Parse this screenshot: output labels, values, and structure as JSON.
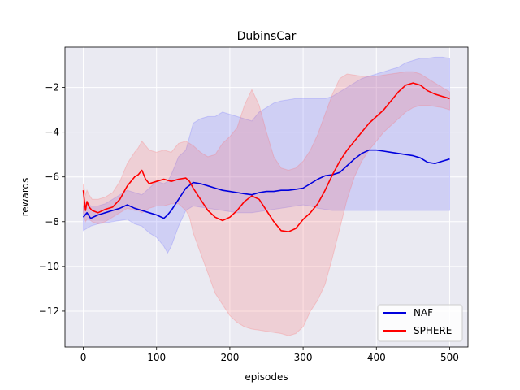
{
  "chart_data": {
    "type": "line",
    "title": "DubinsCar",
    "xlabel": "episodes",
    "ylabel": "rewards",
    "xlim": [
      -25,
      525
    ],
    "ylim": [
      -13.6,
      -0.2
    ],
    "xticks": [
      0,
      100,
      200,
      300,
      400,
      500
    ],
    "yticks": [
      -12,
      -10,
      -8,
      -6,
      -4,
      -2
    ],
    "xtick_labels": [
      "0",
      "100",
      "200",
      "300",
      "400",
      "500"
    ],
    "ytick_labels": [
      "−12",
      "−10",
      "−8",
      "−6",
      "−4",
      "−2"
    ],
    "grid": true,
    "legend_position": "bottom-right",
    "colors": {
      "background": "#eaeaf2",
      "grid": "#ffffff",
      "naf": "#0000dd",
      "sphere": "#ff0000",
      "naf_band": "#6666ff",
      "sphere_band": "#ff6666"
    },
    "series": [
      {
        "name": "NAF",
        "color": "#0000dd",
        "x": [
          0,
          5,
          10,
          20,
          30,
          40,
          50,
          60,
          70,
          80,
          90,
          100,
          110,
          115,
          120,
          130,
          140,
          150,
          160,
          170,
          180,
          190,
          200,
          210,
          220,
          230,
          240,
          250,
          260,
          270,
          280,
          290,
          300,
          310,
          320,
          330,
          340,
          350,
          360,
          370,
          380,
          390,
          400,
          410,
          420,
          430,
          440,
          450,
          460,
          470,
          480,
          490,
          500
        ],
        "y": [
          -7.8,
          -7.6,
          -7.85,
          -7.7,
          -7.6,
          -7.5,
          -7.4,
          -7.25,
          -7.4,
          -7.5,
          -7.6,
          -7.7,
          -7.85,
          -7.7,
          -7.5,
          -7.0,
          -6.5,
          -6.25,
          -6.3,
          -6.4,
          -6.5,
          -6.6,
          -6.65,
          -6.7,
          -6.75,
          -6.8,
          -6.7,
          -6.65,
          -6.65,
          -6.6,
          -6.6,
          -6.55,
          -6.5,
          -6.3,
          -6.1,
          -5.95,
          -5.9,
          -5.8,
          -5.5,
          -5.2,
          -4.95,
          -4.8,
          -4.8,
          -4.85,
          -4.9,
          -4.95,
          -5.0,
          -5.05,
          -5.15,
          -5.35,
          -5.4,
          -5.3,
          -5.2
        ],
        "lower": [
          -8.4,
          -8.3,
          -8.2,
          -8.1,
          -8.05,
          -8.0,
          -7.95,
          -7.9,
          -8.1,
          -8.2,
          -8.5,
          -8.7,
          -9.1,
          -9.4,
          -9.1,
          -8.2,
          -7.5,
          -7.3,
          -7.35,
          -7.4,
          -7.45,
          -7.5,
          -7.55,
          -7.6,
          -7.6,
          -7.6,
          -7.55,
          -7.5,
          -7.45,
          -7.4,
          -7.35,
          -7.3,
          -7.25,
          -7.3,
          -7.4,
          -7.45,
          -7.5,
          -7.5,
          -7.5,
          -7.5,
          -7.5,
          -7.5,
          -7.5,
          -7.5,
          -7.5,
          -7.5,
          -7.5,
          -7.5,
          -7.5,
          -7.5,
          -7.5,
          -7.5,
          -7.5
        ],
        "upper": [
          -7.3,
          -7.1,
          -7.3,
          -7.3,
          -7.2,
          -7.0,
          -6.8,
          -6.6,
          -6.7,
          -6.8,
          -6.5,
          -6.2,
          -6.3,
          -6.2,
          -5.9,
          -5.1,
          -4.8,
          -3.6,
          -3.4,
          -3.3,
          -3.3,
          -3.1,
          -3.2,
          -3.3,
          -3.4,
          -3.5,
          -3.1,
          -2.9,
          -2.7,
          -2.6,
          -2.55,
          -2.5,
          -2.5,
          -2.5,
          -2.5,
          -2.5,
          -2.4,
          -2.2,
          -2.0,
          -1.8,
          -1.6,
          -1.5,
          -1.4,
          -1.3,
          -1.2,
          -1.1,
          -0.9,
          -0.8,
          -0.7,
          -0.7,
          -0.65,
          -0.65,
          -0.7
        ]
      },
      {
        "name": "SPHERE",
        "color": "#ff0000",
        "x": [
          0,
          3,
          5,
          8,
          12,
          20,
          30,
          40,
          50,
          60,
          70,
          75,
          80,
          85,
          90,
          100,
          110,
          120,
          130,
          140,
          145,
          150,
          160,
          170,
          180,
          190,
          200,
          210,
          220,
          230,
          240,
          250,
          260,
          270,
          280,
          290,
          300,
          310,
          320,
          330,
          340,
          350,
          360,
          370,
          380,
          390,
          400,
          410,
          420,
          430,
          440,
          450,
          460,
          470,
          480,
          490,
          500
        ],
        "y": [
          -6.6,
          -7.5,
          -7.1,
          -7.35,
          -7.5,
          -7.6,
          -7.45,
          -7.35,
          -7.0,
          -6.4,
          -6.0,
          -5.9,
          -5.7,
          -6.1,
          -6.3,
          -6.2,
          -6.1,
          -6.2,
          -6.1,
          -6.05,
          -6.2,
          -6.5,
          -7.0,
          -7.5,
          -7.8,
          -7.95,
          -7.8,
          -7.5,
          -7.1,
          -6.85,
          -7.0,
          -7.5,
          -8.0,
          -8.4,
          -8.45,
          -8.3,
          -7.9,
          -7.6,
          -7.2,
          -6.6,
          -5.9,
          -5.3,
          -4.8,
          -4.4,
          -4.0,
          -3.6,
          -3.3,
          -3.0,
          -2.6,
          -2.2,
          -1.9,
          -1.8,
          -1.9,
          -2.15,
          -2.3,
          -2.4,
          -2.5
        ],
        "lower": [
          -7.6,
          -8.0,
          -7.9,
          -7.9,
          -8.0,
          -8.1,
          -8.0,
          -7.8,
          -7.6,
          -7.4,
          -7.5,
          -7.5,
          -7.6,
          -7.5,
          -7.4,
          -7.3,
          -7.3,
          -7.2,
          -7.2,
          -7.5,
          -7.8,
          -8.5,
          -9.4,
          -10.3,
          -11.2,
          -11.7,
          -12.2,
          -12.5,
          -12.7,
          -12.8,
          -12.85,
          -12.9,
          -12.95,
          -13.0,
          -13.1,
          -13.0,
          -12.7,
          -12.0,
          -11.5,
          -10.8,
          -9.6,
          -8.3,
          -7.0,
          -6.0,
          -5.3,
          -4.8,
          -4.4,
          -4.0,
          -3.7,
          -3.4,
          -3.1,
          -2.9,
          -2.8,
          -2.8,
          -2.85,
          -2.9,
          -3.0
        ],
        "upper": [
          -6.3,
          -6.8,
          -6.6,
          -6.8,
          -7.0,
          -7.0,
          -6.9,
          -6.7,
          -6.2,
          -5.4,
          -4.9,
          -4.7,
          -4.4,
          -4.6,
          -4.8,
          -4.9,
          -4.8,
          -4.9,
          -4.5,
          -4.4,
          -4.5,
          -4.6,
          -4.9,
          -5.1,
          -5.0,
          -4.5,
          -4.2,
          -3.8,
          -2.8,
          -2.1,
          -2.8,
          -4.0,
          -5.1,
          -5.6,
          -5.7,
          -5.6,
          -5.3,
          -4.8,
          -4.1,
          -3.2,
          -2.3,
          -1.6,
          -1.4,
          -1.45,
          -1.5,
          -1.5,
          -1.5,
          -1.45,
          -1.4,
          -1.35,
          -1.3,
          -1.3,
          -1.4,
          -1.6,
          -1.8,
          -2.0,
          -2.2
        ]
      }
    ]
  }
}
